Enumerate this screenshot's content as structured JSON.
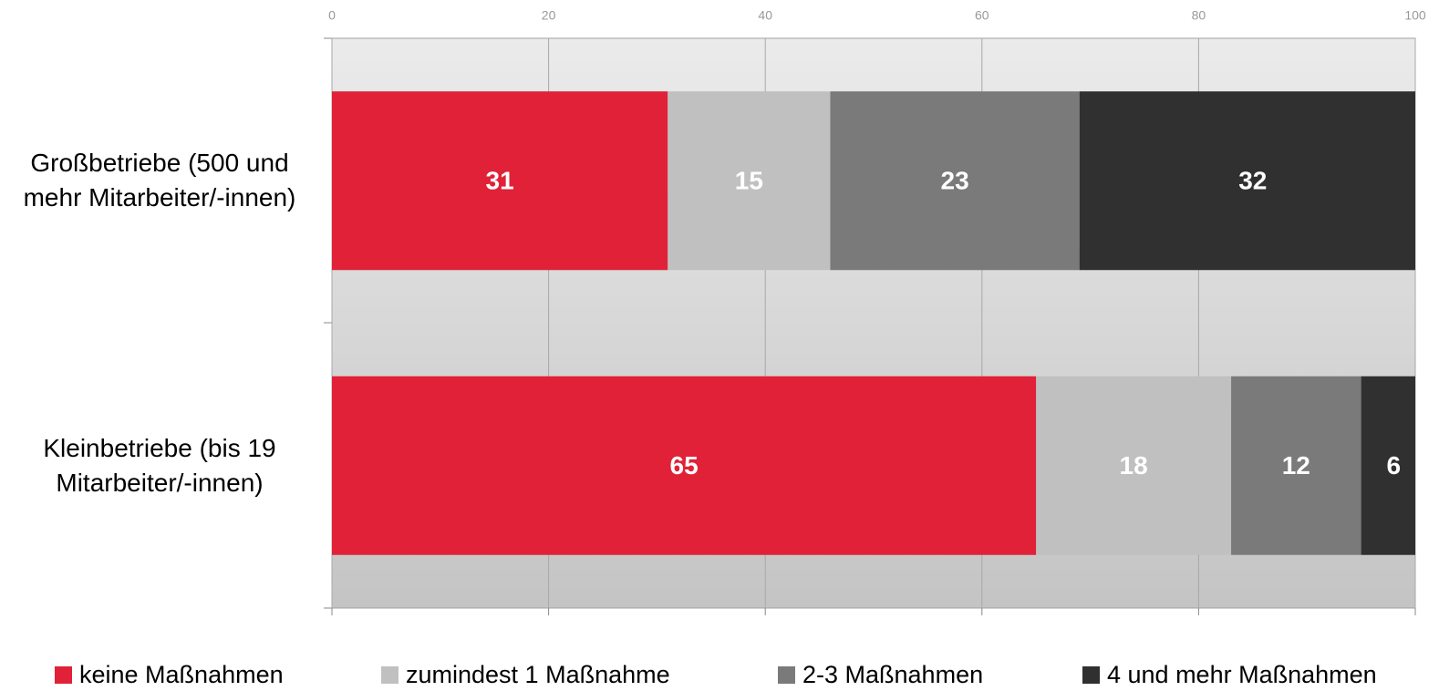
{
  "chart_data": {
    "type": "stacked-bar-horizontal",
    "categories": [
      "Großbetriebe (500 und mehr Mitarbeiter/-innen)",
      "Kleinbetriebe (bis 19 Mitarbeiter/-innen)"
    ],
    "series": [
      {
        "name": "keine Maßnahmen",
        "color": "#e02137",
        "values": [
          31,
          65
        ]
      },
      {
        "name": "zumindest 1 Maßnahme",
        "color": "#c0c0c0",
        "values": [
          15,
          18
        ]
      },
      {
        "name": "2-3 Maßnahmen",
        "color": "#7a7a7a",
        "values": [
          23,
          12
        ]
      },
      {
        "name": "4 und mehr Maßnahmen",
        "color": "#303030",
        "values": [
          32,
          6
        ]
      }
    ],
    "xlim": [
      0,
      100
    ],
    "xticks": [
      0,
      20,
      40,
      60,
      80,
      100
    ],
    "grid": true,
    "legend": "bottom"
  }
}
